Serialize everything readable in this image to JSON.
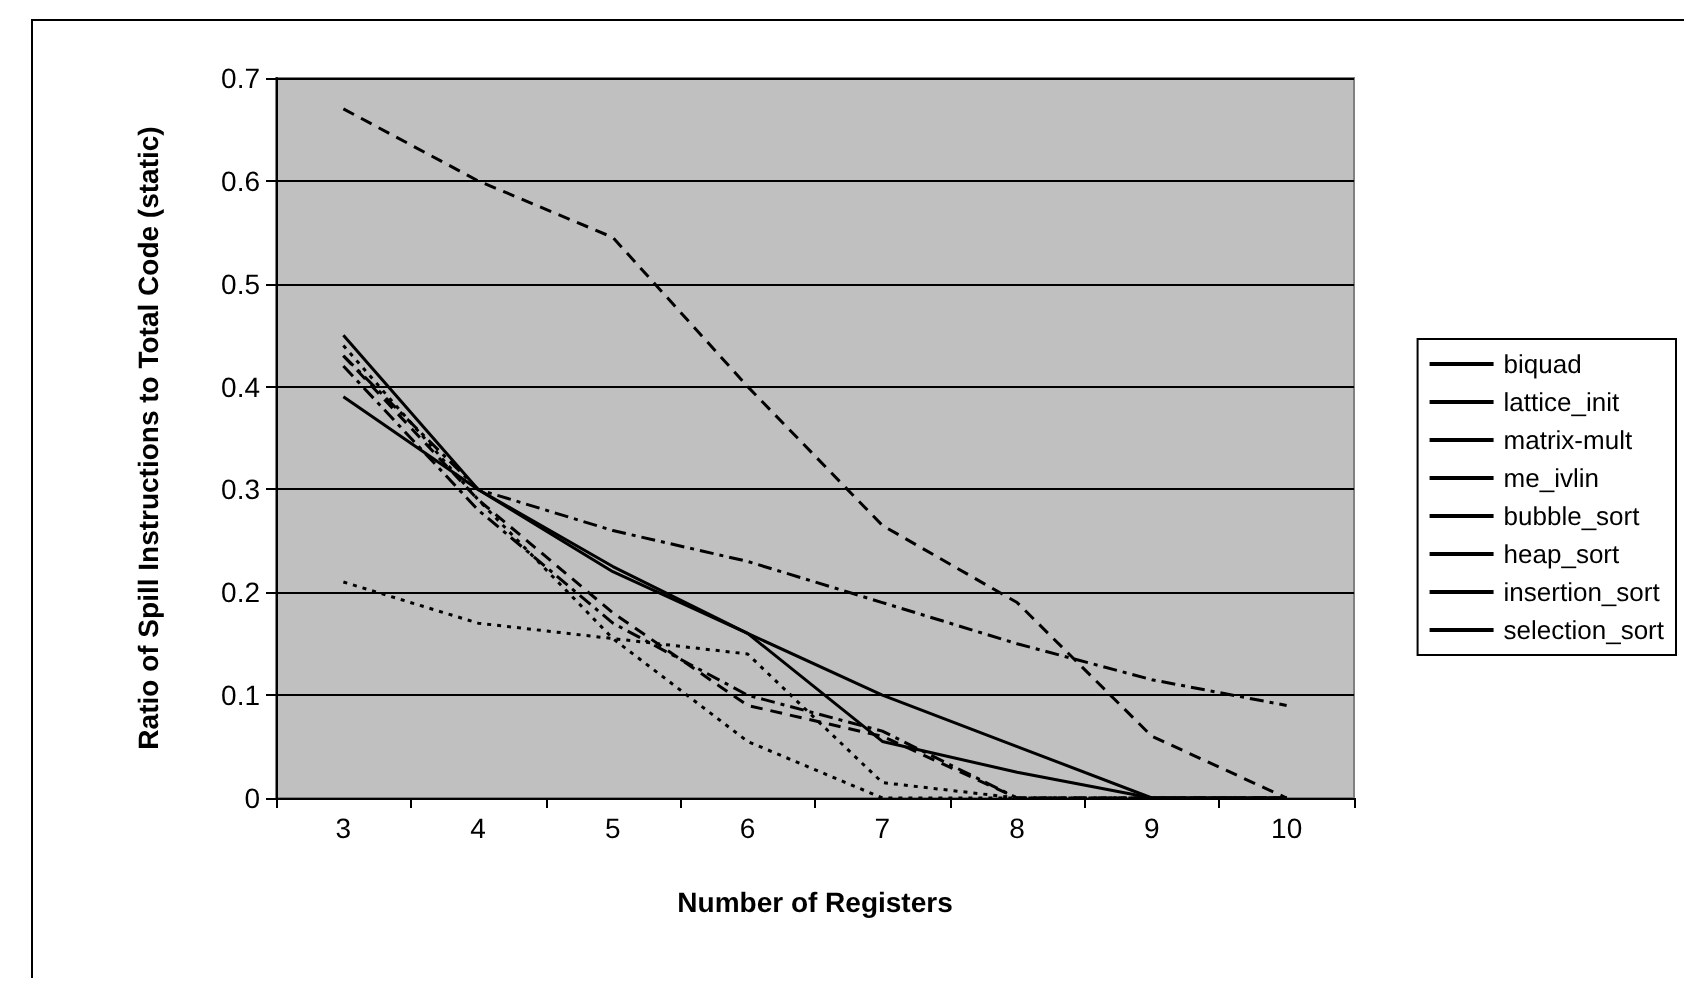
{
  "chart_data": {
    "type": "line",
    "xlabel": "Number of Registers",
    "ylabel": "Ratio of Spill Instructions to Total Code (static)",
    "categories": [
      "3",
      "4",
      "5",
      "6",
      "7",
      "8",
      "9",
      "10"
    ],
    "ylim": [
      0,
      0.7
    ],
    "yticks": [
      0,
      0.1,
      0.2,
      0.3,
      0.4,
      0.5,
      0.6,
      0.7
    ],
    "grid": "y",
    "legend": "right",
    "marker": "none",
    "series": [
      {
        "name": "biquad",
        "color": "#000000",
        "line_style": "solid",
        "values": [
          0.45,
          0.3,
          0.22,
          0.16,
          0.1,
          0.05,
          0,
          0
        ]
      },
      {
        "name": "lattice_init",
        "color": "#000000",
        "line_style": "dashed",
        "values": [
          0.67,
          0.6,
          0.545,
          0.4,
          0.265,
          0.19,
          0.06,
          0
        ]
      },
      {
        "name": "matrix-mult",
        "color": "#000000",
        "line_style": "dotted",
        "values": [
          0.21,
          0.17,
          0.155,
          0.14,
          0.015,
          0,
          0,
          0
        ]
      },
      {
        "name": "me_ivlin",
        "color": "#000000",
        "line_style": "dashdot",
        "values": [
          0.43,
          0.3,
          0.26,
          0.23,
          0.19,
          0.15,
          0.115,
          0.09
        ]
      },
      {
        "name": "bubble_sort",
        "color": "#000000",
        "line_style": "dashdot",
        "values": [
          0.42,
          0.28,
          0.17,
          0.1,
          0.065,
          0,
          0,
          0
        ]
      },
      {
        "name": "heap_sort",
        "color": "#000000",
        "line_style": "solid",
        "values": [
          0.39,
          0.3,
          0.225,
          0.16,
          0.055,
          0.025,
          0,
          0
        ]
      },
      {
        "name": "insertion_sort",
        "color": "#000000",
        "line_style": "dashed",
        "values": [
          0.43,
          0.29,
          0.18,
          0.09,
          0.06,
          0,
          0,
          0
        ]
      },
      {
        "name": "selection_sort",
        "color": "#000000",
        "line_style": "dotted",
        "values": [
          0.44,
          0.29,
          0.155,
          0.055,
          0,
          0,
          0,
          0
        ]
      }
    ]
  }
}
